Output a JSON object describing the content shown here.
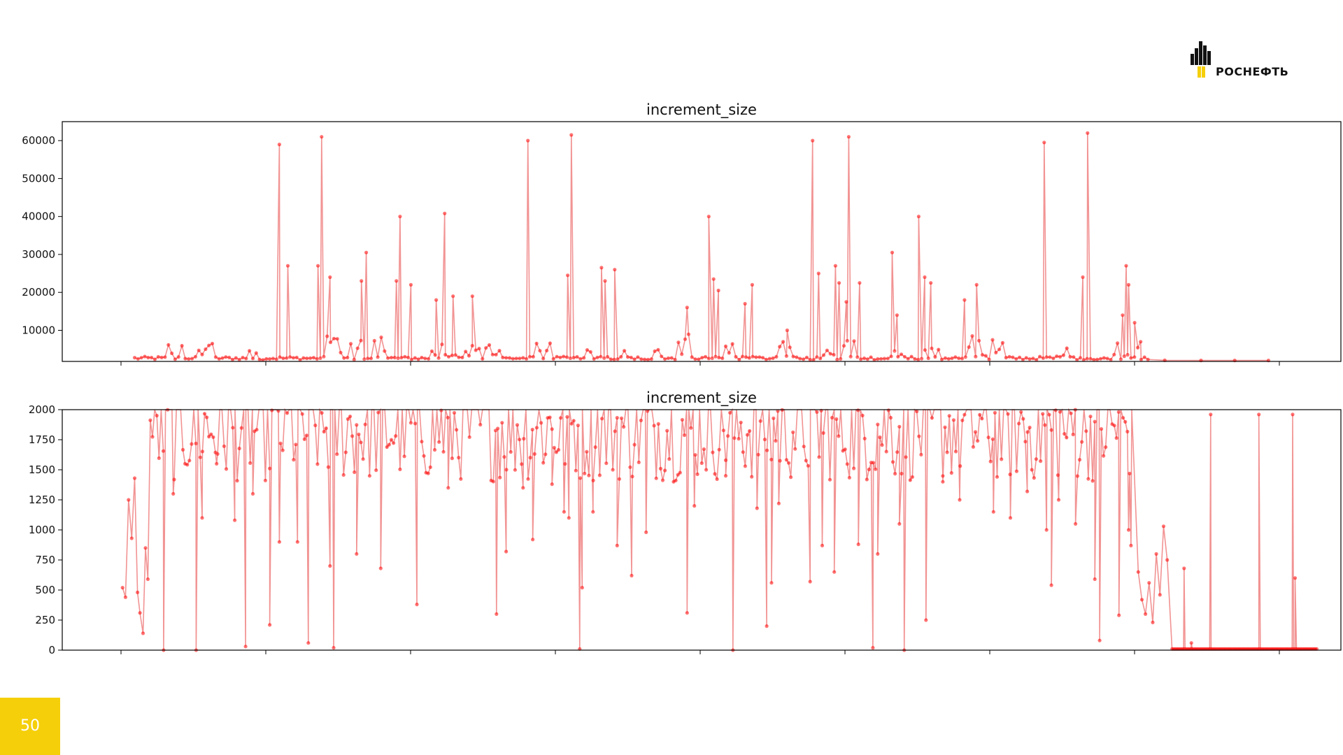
{
  "brand": {
    "name": "РОСНЕФТЬ",
    "accent": "#f5cf0a",
    "logo_icon": "rosneft-logo-icon"
  },
  "page_number": "50",
  "colors": {
    "series": "#ff0000",
    "series_line": "#f08080",
    "axis": "#000000"
  },
  "chart_data": [
    {
      "type": "line",
      "title": "increment_size",
      "xlabel": "",
      "ylabel": "",
      "ylim": [
        1800,
        65000
      ],
      "yticks": [
        10000,
        20000,
        30000,
        40000,
        50000,
        60000
      ],
      "ytick_labels": [
        "10000",
        "20000",
        "30000",
        "40000",
        "50000",
        "60000"
      ],
      "xlim": [
        0,
        5300
      ],
      "x_tick_count": 9,
      "marker": "o",
      "baseline": 2000,
      "data_start": 300,
      "data_end": 4500,
      "spikes": [
        [
          900,
          59000
        ],
        [
          935,
          27000
        ],
        [
          1060,
          27000
        ],
        [
          1075,
          61000
        ],
        [
          1110,
          24000
        ],
        [
          1240,
          23000
        ],
        [
          1260,
          30500
        ],
        [
          1385,
          23000
        ],
        [
          1400,
          40000
        ],
        [
          1445,
          22000
        ],
        [
          1550,
          18000
        ],
        [
          1585,
          40800
        ],
        [
          1620,
          19000
        ],
        [
          1700,
          19000
        ],
        [
          1930,
          60000
        ],
        [
          2095,
          24500
        ],
        [
          2110,
          61500
        ],
        [
          2235,
          26500
        ],
        [
          2250,
          23000
        ],
        [
          2290,
          26000
        ],
        [
          2590,
          16000
        ],
        [
          2680,
          40000
        ],
        [
          2700,
          23500
        ],
        [
          2720,
          20500
        ],
        [
          2830,
          17000
        ],
        [
          2860,
          22000
        ],
        [
          3005,
          10000
        ],
        [
          3110,
          60000
        ],
        [
          3135,
          25000
        ],
        [
          3205,
          27000
        ],
        [
          3220,
          22500
        ],
        [
          3250,
          17500
        ],
        [
          3260,
          61000
        ],
        [
          3305,
          22500
        ],
        [
          3440,
          30500
        ],
        [
          3460,
          14000
        ],
        [
          3550,
          40000
        ],
        [
          3575,
          24000
        ],
        [
          3600,
          22500
        ],
        [
          3740,
          18000
        ],
        [
          3790,
          22000
        ],
        [
          4070,
          59500
        ],
        [
          4230,
          24000
        ],
        [
          4250,
          62000
        ],
        [
          4395,
          14000
        ],
        [
          4410,
          27000
        ],
        [
          4420,
          22000
        ],
        [
          4445,
          12000
        ],
        [
          4470,
          7000
        ]
      ],
      "clusters": [
        [
          470,
          7000
        ],
        [
          590,
          7000
        ],
        [
          790,
          7000
        ],
        [
          1130,
          9000
        ],
        [
          1220,
          8000
        ],
        [
          1325,
          9000
        ],
        [
          1560,
          7000
        ],
        [
          1620,
          7000
        ],
        [
          1695,
          6000
        ],
        [
          1780,
          7500
        ],
        [
          2000,
          7000
        ],
        [
          2170,
          5000
        ],
        [
          2360,
          8000
        ],
        [
          2480,
          6000
        ],
        [
          2580,
          9000
        ],
        [
          2760,
          7000
        ],
        [
          2900,
          6000
        ],
        [
          3000,
          7000
        ],
        [
          3175,
          6000
        ],
        [
          3270,
          9000
        ],
        [
          3470,
          6000
        ],
        [
          3610,
          7000
        ],
        [
          3770,
          9000
        ],
        [
          3840,
          7000
        ],
        [
          3890,
          8000
        ],
        [
          4150,
          7000
        ],
        [
          4330,
          5000
        ],
        [
          4390,
          9000
        ],
        [
          4440,
          6000
        ]
      ],
      "tail_points": [
        [
          4570,
          2100
        ],
        [
          4720,
          2050
        ],
        [
          4860,
          2050
        ],
        [
          5000,
          2050
        ]
      ]
    },
    {
      "type": "line",
      "title": "increment_size",
      "xlabel": "",
      "ylabel": "",
      "ylim": [
        0,
        2000
      ],
      "yticks": [
        0,
        250,
        500,
        750,
        1000,
        1250,
        1500,
        1750,
        2000
      ],
      "ytick_labels": [
        "0",
        "250",
        "500",
        "750",
        "1000",
        "1250",
        "1500",
        "1750",
        "2000"
      ],
      "xlim": [
        0,
        5300
      ],
      "x_tick_count": 9,
      "marker": "o",
      "clip_top": 2000,
      "data_start": 250,
      "early_points": [
        [
          250,
          520
        ],
        [
          262,
          440
        ],
        [
          275,
          1250
        ],
        [
          288,
          930
        ],
        [
          300,
          1430
        ],
        [
          312,
          480
        ],
        [
          322,
          310
        ],
        [
          335,
          140
        ],
        [
          345,
          850
        ],
        [
          355,
          590
        ]
      ],
      "dips": [
        [
          420,
          0
        ],
        [
          460,
          1300
        ],
        [
          555,
          0
        ],
        [
          580,
          1100
        ],
        [
          640,
          1550
        ],
        [
          715,
          1080
        ],
        [
          760,
          30
        ],
        [
          790,
          1300
        ],
        [
          860,
          210
        ],
        [
          900,
          900
        ],
        [
          975,
          900
        ],
        [
          1020,
          60
        ],
        [
          1110,
          700
        ],
        [
          1125,
          20
        ],
        [
          1220,
          800
        ],
        [
          1320,
          680
        ],
        [
          1470,
          380
        ],
        [
          1600,
          1350
        ],
        [
          1800,
          300
        ],
        [
          1840,
          820
        ],
        [
          1910,
          1350
        ],
        [
          1950,
          920
        ],
        [
          2030,
          1380
        ],
        [
          2080,
          1150
        ],
        [
          2100,
          1100
        ],
        [
          2145,
          10
        ],
        [
          2155,
          520
        ],
        [
          2200,
          1150
        ],
        [
          2300,
          870
        ],
        [
          2360,
          620
        ],
        [
          2420,
          980
        ],
        [
          2590,
          310
        ],
        [
          2620,
          1200
        ],
        [
          2750,
          1450
        ],
        [
          2780,
          0
        ],
        [
          2880,
          1180
        ],
        [
          2920,
          200
        ],
        [
          2940,
          560
        ],
        [
          2970,
          1220
        ],
        [
          3100,
          570
        ],
        [
          3150,
          870
        ],
        [
          3200,
          650
        ],
        [
          3300,
          880
        ],
        [
          3360,
          20
        ],
        [
          3380,
          800
        ],
        [
          3470,
          1050
        ],
        [
          3490,
          0
        ],
        [
          3580,
          250
        ],
        [
          3650,
          1400
        ],
        [
          3720,
          1250
        ],
        [
          3860,
          1150
        ],
        [
          3930,
          1100
        ],
        [
          4000,
          1320
        ],
        [
          4080,
          1000
        ],
        [
          4100,
          540
        ],
        [
          4130,
          1250
        ],
        [
          4200,
          1050
        ],
        [
          4280,
          590
        ],
        [
          4300,
          80
        ],
        [
          4380,
          290
        ],
        [
          4420,
          1000
        ],
        [
          4430,
          870
        ]
      ],
      "recovery_points": [
        [
          4460,
          650
        ],
        [
          4475,
          420
        ],
        [
          4490,
          300
        ],
        [
          4505,
          560
        ],
        [
          4520,
          230
        ],
        [
          4535,
          800
        ],
        [
          4550,
          460
        ],
        [
          4565,
          1030
        ],
        [
          4580,
          750
        ]
      ],
      "flat_start": 4600,
      "flat_end": 5200,
      "tail_spikes": [
        [
          4650,
          680
        ],
        [
          4680,
          60
        ],
        [
          4760,
          1960
        ],
        [
          4960,
          1960
        ],
        [
          5100,
          1960
        ],
        [
          5110,
          600
        ]
      ]
    }
  ]
}
